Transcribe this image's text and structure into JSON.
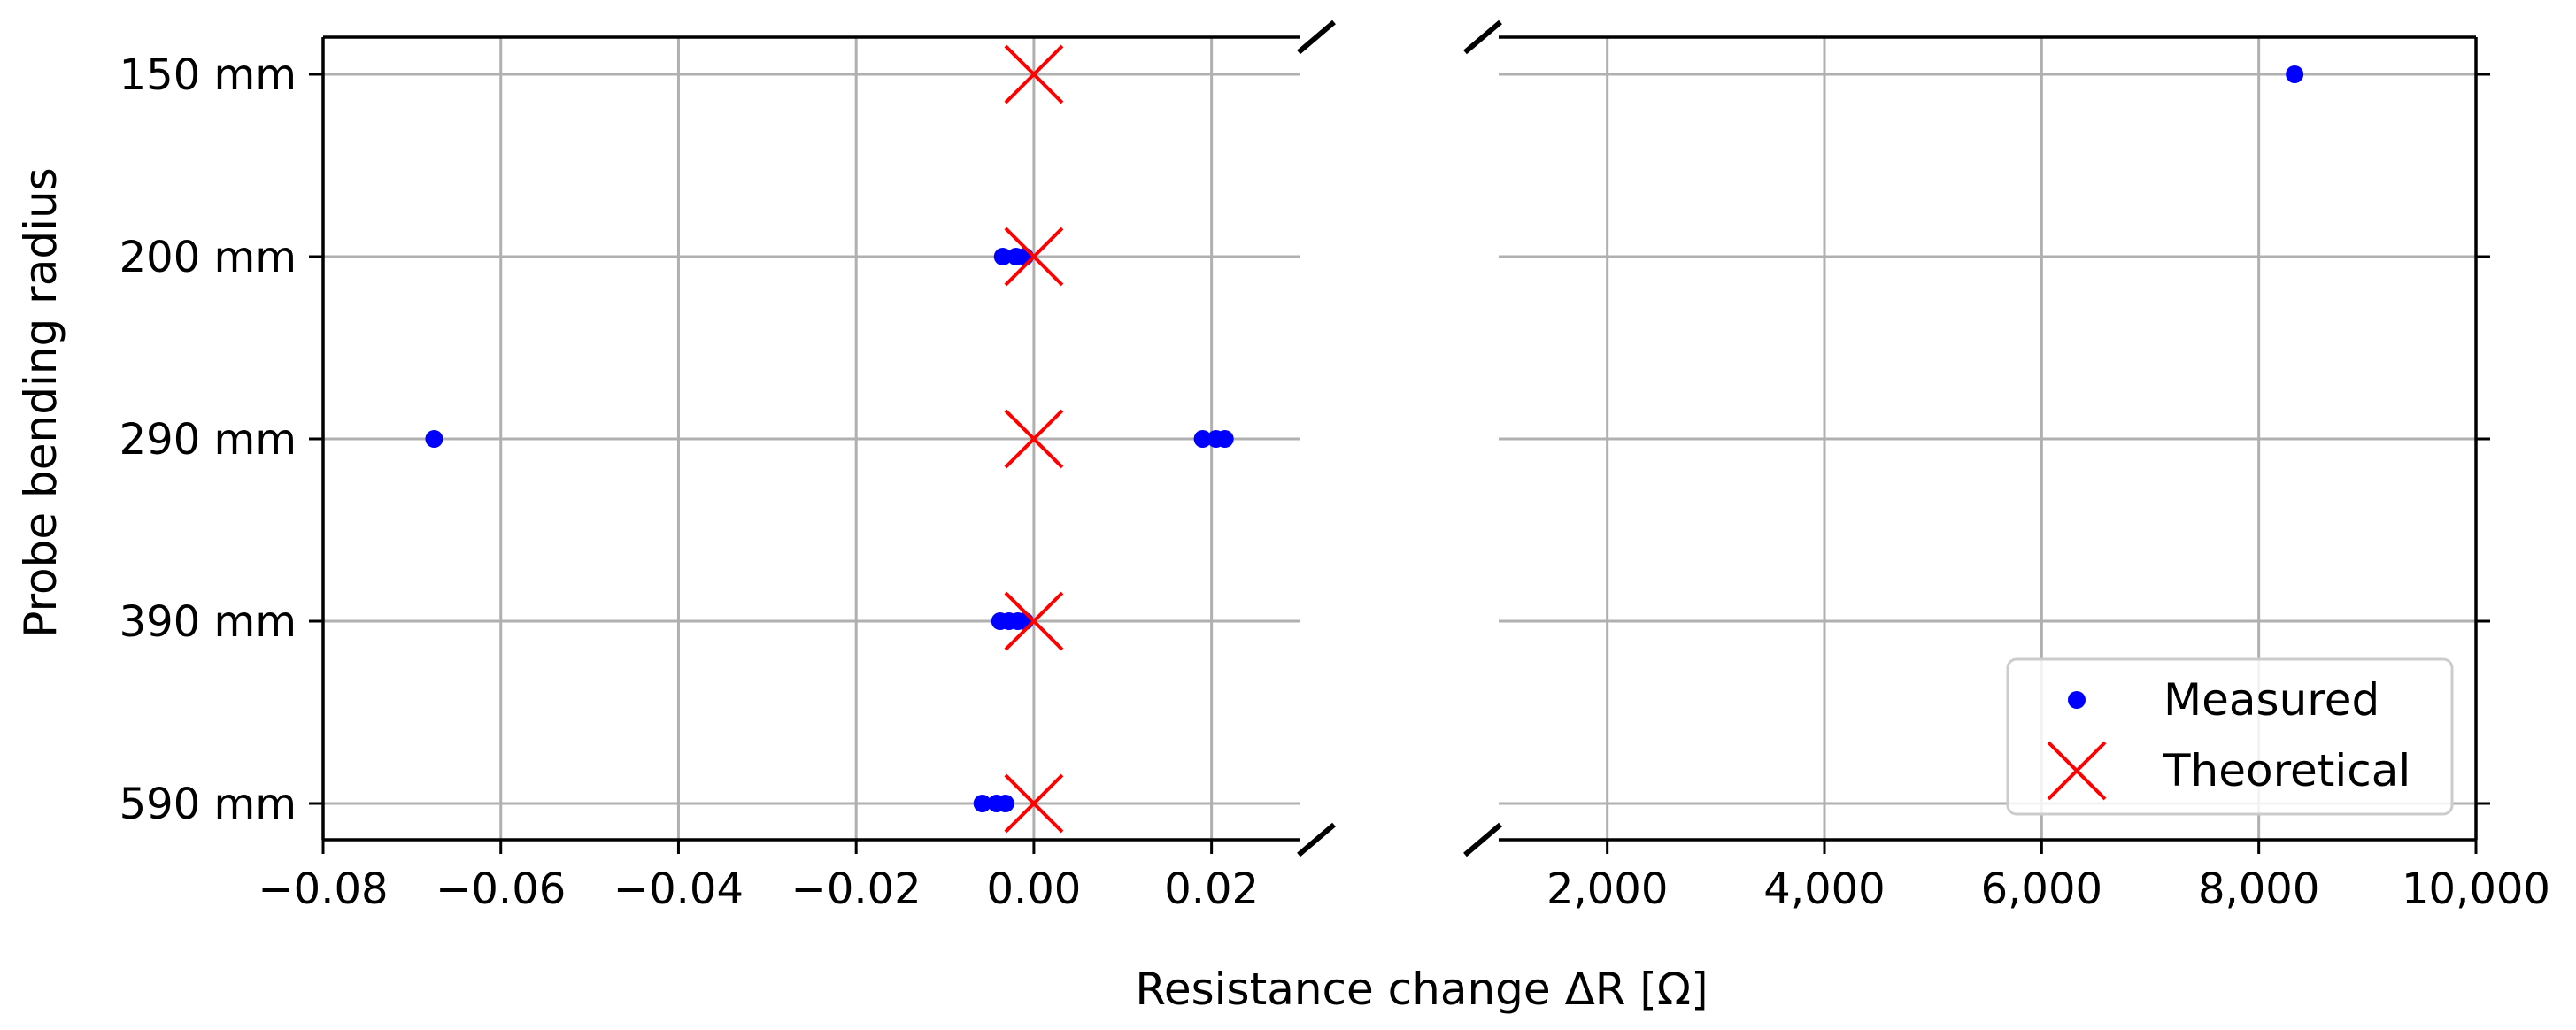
{
  "chart_data": {
    "type": "scatter",
    "xlabel": "Resistance change ΔR [Ω]",
    "ylabel": "Probe bending radius",
    "categories": [
      "150 mm",
      "200 mm",
      "290 mm",
      "390 mm",
      "590 mm"
    ],
    "broken_axis": true,
    "panels": [
      {
        "xlim": [
          -0.08,
          0.03
        ],
        "xticks": [
          -0.08,
          -0.06,
          -0.04,
          -0.02,
          0.0,
          0.02
        ],
        "xtick_labels": [
          "−0.08",
          "−0.06",
          "−0.04",
          "−0.02",
          "0.00",
          "0.02"
        ]
      },
      {
        "xlim": [
          1000,
          10000
        ],
        "xticks": [
          2000,
          4000,
          6000,
          8000,
          10000
        ],
        "xtick_labels": [
          "2,000",
          "4,000",
          "6,000",
          "8,000",
          "10,000"
        ]
      }
    ],
    "grid": true,
    "legend": {
      "position": "lower-right"
    },
    "series": [
      {
        "name": "Measured",
        "marker": "dot",
        "color": "#0000ff",
        "points": [
          {
            "category": "150 mm",
            "x": 8330
          },
          {
            "category": "200 mm",
            "x": -0.0035
          },
          {
            "category": "200 mm",
            "x": -0.002
          },
          {
            "category": "200 mm",
            "x": -0.001
          },
          {
            "category": "290 mm",
            "x": -0.0675
          },
          {
            "category": "290 mm",
            "x": 0.019
          },
          {
            "category": "290 mm",
            "x": 0.0205
          },
          {
            "category": "290 mm",
            "x": 0.0215
          },
          {
            "category": "390 mm",
            "x": -0.0038
          },
          {
            "category": "390 mm",
            "x": -0.0028
          },
          {
            "category": "390 mm",
            "x": -0.0018
          },
          {
            "category": "390 mm",
            "x": -0.001
          },
          {
            "category": "590 mm",
            "x": -0.0058
          },
          {
            "category": "590 mm",
            "x": -0.0042
          },
          {
            "category": "590 mm",
            "x": -0.0032
          }
        ]
      },
      {
        "name": "Theoretical",
        "marker": "x",
        "color": "#ff0000",
        "points": [
          {
            "category": "150 mm",
            "x": 0
          },
          {
            "category": "200 mm",
            "x": 0
          },
          {
            "category": "290 mm",
            "x": 0
          },
          {
            "category": "390 mm",
            "x": 0
          },
          {
            "category": "590 mm",
            "x": 0
          }
        ]
      }
    ]
  }
}
